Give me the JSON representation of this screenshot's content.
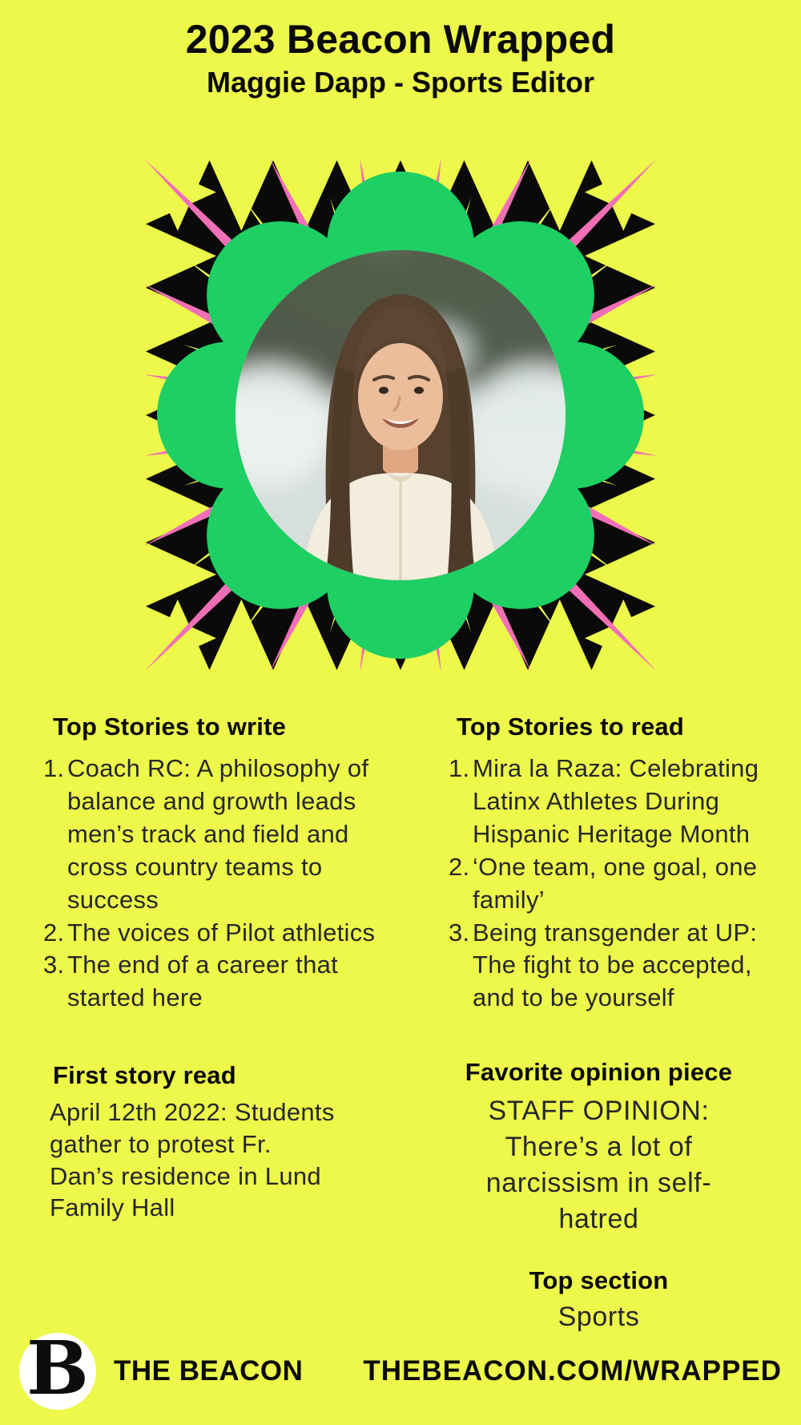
{
  "colors": {
    "background": "#EDF84A",
    "pink": "#F06FB6",
    "green": "#1ECF63",
    "black": "#0A0A0A",
    "text": "#26272a"
  },
  "header": {
    "title": "2023 Beacon Wrapped",
    "subtitle": "Maggie Dapp - Sports Editor"
  },
  "sections": {
    "write": {
      "heading": "Top Stories to write",
      "items": [
        {
          "num": "1.",
          "text": "Coach RC: A philosophy of balance and growth leads men’s track and field and cross country teams to success"
        },
        {
          "num": "2.",
          "text": "The voices of Pilot athletics"
        },
        {
          "num": "3.",
          "text": "The end of a career that started here"
        }
      ]
    },
    "read": {
      "heading": "Top Stories to read",
      "items": [
        {
          "num": "1.",
          "text": "Mira la Raza: Celebrating Latinx Athletes During Hispanic Heritage Month"
        },
        {
          "num": "2.",
          "text": "‘One team, one goal, one family’"
        },
        {
          "num": "3.",
          "text": "Being transgender at UP: The fight to be accepted, and to be yourself"
        }
      ]
    },
    "first_story": {
      "heading": "First story read",
      "body": "April 12th 2022: Students gather to protest Fr. Dan’s residence in Lund Family Hall"
    },
    "favorite_opinion": {
      "heading": "Favorite opinion piece",
      "body": "STAFF OPINION: There’s a lot of narcissism in self-hatred"
    },
    "top_section": {
      "heading": "Top section",
      "value": "Sports"
    }
  },
  "footer": {
    "logo_letter": "B",
    "brand": "THE BEACON",
    "url": "THEBEACON.COM/WRAPPED"
  }
}
